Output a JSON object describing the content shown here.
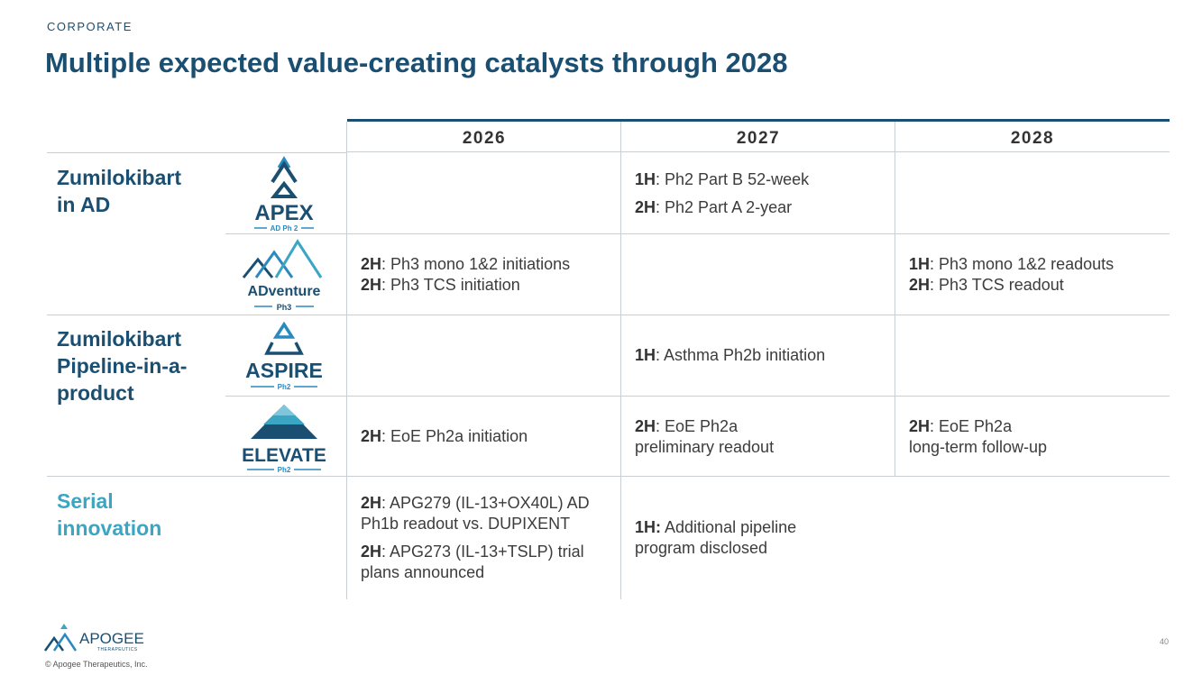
{
  "header": {
    "section": "CORPORATE",
    "title": "Multiple expected value-creating catalysts through 2028"
  },
  "columns": [
    "2026",
    "2027",
    "2028"
  ],
  "groups": [
    {
      "lines": [
        "Zumilokibart",
        "in AD"
      ],
      "color": "#1b4f72"
    },
    {
      "lines": [
        "Zumilokibart",
        "Pipeline-in-a-",
        "product"
      ],
      "color": "#1b4f72"
    },
    {
      "lines": [
        "Serial",
        "innovation"
      ],
      "color": "#3aa6c4"
    }
  ],
  "trials": [
    {
      "name": "APEX",
      "subtitle": "AD Ph 2",
      "icon": "apex-mountain-icon"
    },
    {
      "name": "ADventure",
      "subtitle": "Ph3",
      "icon": "adventure-mountains-icon"
    },
    {
      "name": "ASPIRE",
      "subtitle": "Ph2",
      "icon": "aspire-triangle-icon"
    },
    {
      "name": "ELEVATE",
      "subtitle": "Ph2",
      "icon": "elevate-peak-icon"
    }
  ],
  "cells": {
    "apex_2027_1": {
      "tag": "1H",
      "text": ": Ph2 Part B 52-week"
    },
    "apex_2027_2": {
      "tag": "2H",
      "text": ": Ph2 Part A 2-year"
    },
    "adv_2026_1": {
      "tag": "2H",
      "text": ": Ph3 mono 1&2 initiations"
    },
    "adv_2026_2": {
      "tag": "2H",
      "text": ": Ph3 TCS initiation"
    },
    "adv_2028_1": {
      "tag": "1H",
      "text": ": Ph3 mono 1&2 readouts"
    },
    "adv_2028_2": {
      "tag": "2H",
      "text": ": Ph3 TCS readout"
    },
    "aspire_2027_1": {
      "tag": "1H",
      "text": ": Asthma Ph2b initiation"
    },
    "elev_2026_1": {
      "tag": "2H",
      "text": ": EoE Ph2a initiation"
    },
    "elev_2027_1": {
      "tag": "2H",
      "text": ": EoE Ph2a",
      "line2": "preliminary readout"
    },
    "elev_2028_1": {
      "tag": "2H",
      "text": ": EoE Ph2a",
      "line2": "long-term follow-up"
    },
    "serial_2026_1": {
      "tag": "2H",
      "text": ": APG279 (IL-13+OX40L) AD",
      "line2": "Ph1b readout vs. DUPIXENT"
    },
    "serial_2026_2": {
      "tag": "2H",
      "text": ": APG273 (IL-13+TSLP) trial",
      "line2": "plans announced"
    },
    "serial_2027_1": {
      "tag": "1H:",
      "text": " Additional pipeline",
      "line2": "program disclosed"
    }
  },
  "footer": {
    "company": "APOGEE",
    "company_sub": "THERAPEUTICS",
    "copyright": "© Apogee Therapeutics, Inc.",
    "page": "40"
  },
  "colors": {
    "brand_dark": "#1b4f72",
    "brand_light": "#3aa6c4",
    "accent": "#2a8ac0"
  }
}
